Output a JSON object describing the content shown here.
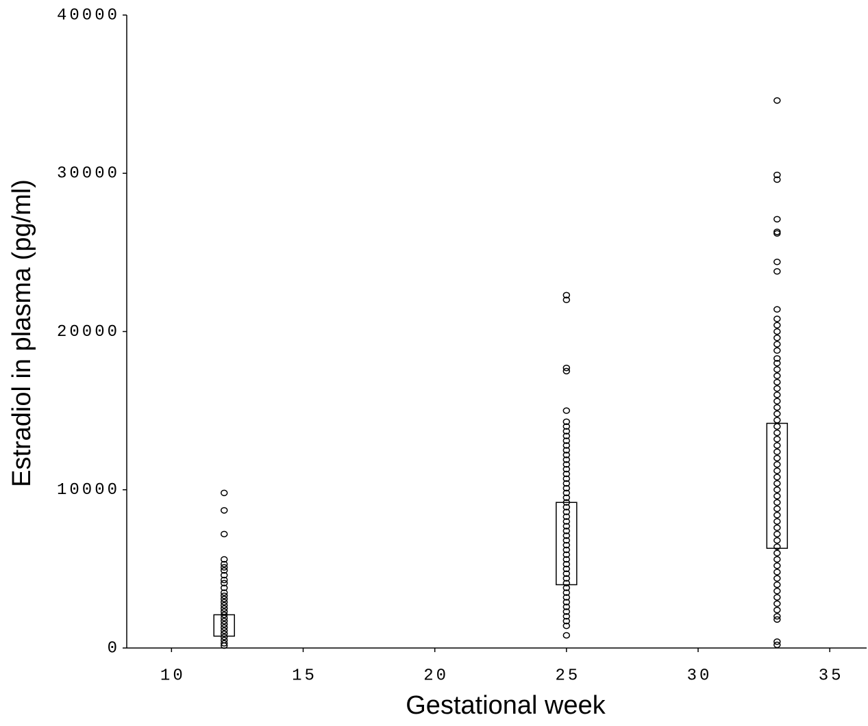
{
  "chart_data": {
    "type": "box",
    "xlabel": "Gestational week",
    "ylabel": "Estradiol in plasma (pg/ml)",
    "xlim": [
      8.3,
      36.4
    ],
    "ylim": [
      0,
      40000
    ],
    "xticks": [
      10,
      15,
      20,
      25,
      30,
      35
    ],
    "yticks": [
      0,
      10000,
      20000,
      30000,
      40000
    ],
    "color": "#000000",
    "groups": [
      {
        "x": 12,
        "q1": 750,
        "q3": 2100,
        "points": [
          9800,
          8700,
          7200,
          5600,
          5300,
          5100,
          4900,
          4600,
          4300,
          4100,
          3800,
          3500,
          3300,
          3100,
          2900,
          2700,
          2500,
          2300,
          2100,
          1900,
          1700,
          1500,
          1300,
          1100,
          900,
          700,
          500,
          300,
          150
        ]
      },
      {
        "x": 25,
        "q1": 4000,
        "q3": 9200,
        "points": [
          22300,
          22000,
          17700,
          17500,
          15000,
          14300,
          14000,
          13700,
          13400,
          13100,
          12800,
          12500,
          12200,
          11900,
          11600,
          11300,
          11000,
          10700,
          10400,
          10100,
          9800,
          9500,
          9200,
          8900,
          8600,
          8300,
          8000,
          7700,
          7400,
          7100,
          6800,
          6500,
          6200,
          5900,
          5600,
          5300,
          5000,
          4700,
          4400,
          4100,
          3800,
          3500,
          3200,
          2900,
          2600,
          2300,
          2000,
          1700,
          1400,
          800
        ]
      },
      {
        "x": 33,
        "q1": 6300,
        "q3": 14200,
        "points": [
          34600,
          29900,
          29600,
          27100,
          26300,
          26200,
          24400,
          23800,
          21400,
          20800,
          20400,
          20000,
          19600,
          19200,
          18800,
          18300,
          18000,
          17600,
          17200,
          16800,
          16400,
          16000,
          15600,
          15200,
          14800,
          14400,
          14000,
          13600,
          13200,
          12800,
          12400,
          12000,
          11600,
          11200,
          10800,
          10400,
          10000,
          9600,
          9200,
          8800,
          8400,
          8000,
          7600,
          7200,
          6800,
          6400,
          6000,
          5600,
          5200,
          4800,
          4400,
          4000,
          3600,
          3200,
          2800,
          2400,
          2000,
          1800,
          400,
          200
        ]
      }
    ]
  }
}
